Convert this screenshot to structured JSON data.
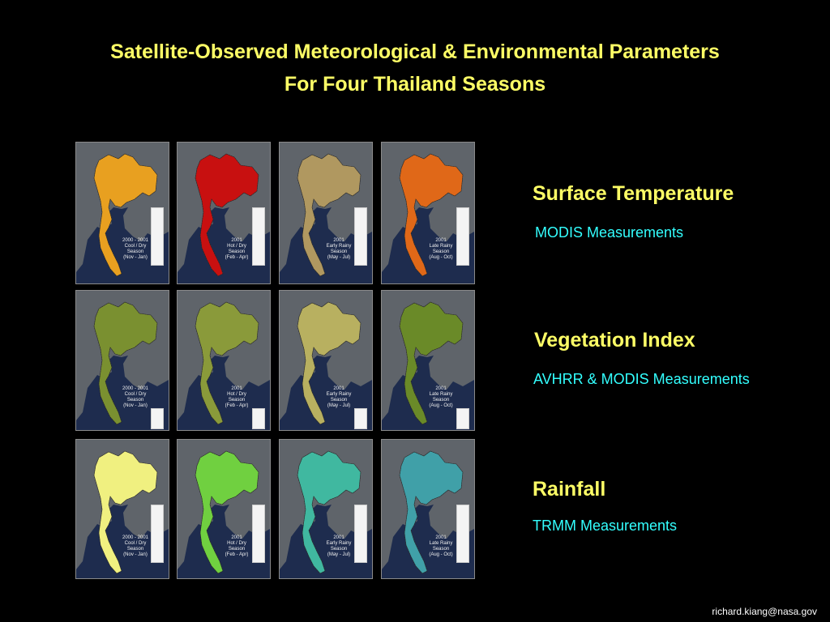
{
  "title_line1": "Satellite-Observed Meteorological & Environmental Parameters",
  "title_line2": "For Four Thailand Seasons",
  "sections": [
    {
      "title": "Surface Temperature",
      "subtitle": "MODIS Measurements"
    },
    {
      "title": "Vegetation Index",
      "subtitle": "AVHRR & MODIS Measurements"
    },
    {
      "title": "Rainfall",
      "subtitle": "TRMM Measurements"
    }
  ],
  "seasons": [
    {
      "year": "2000 - 2001",
      "name1": "Cool / Dry",
      "name2": "Season",
      "months": "(Nov - Jan)"
    },
    {
      "year": "2001",
      "name1": "Hot / Dry",
      "name2": "Season",
      "months": "(Feb - Apr)"
    },
    {
      "year": "2001",
      "name1": "Early Rainy",
      "name2": "Season",
      "months": "(May - Jul)"
    },
    {
      "year": "2001",
      "name1": "Late Rainy",
      "name2": "Season",
      "months": "(Aug - Oct)"
    }
  ],
  "map_colors": {
    "temperature": [
      "#e8a020",
      "#c81010",
      "#b09860",
      "#e06818"
    ],
    "vegetation": [
      "#7a9030",
      "#8a9a3a",
      "#b8b060",
      "#6a8a28"
    ],
    "rainfall": [
      "#f0f080",
      "#70d040",
      "#40b8a0",
      "#40a0a8"
    ]
  },
  "footer": "richard.kiang@nasa.gov"
}
